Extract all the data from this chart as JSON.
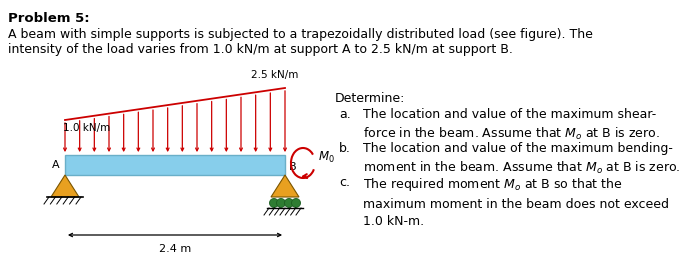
{
  "title": "Problem 5:",
  "description_line1": "A beam with simple supports is subjected to a trapezoidally distributed load (see figure). The",
  "description_line2": "intensity of the load varies from 1.0 kN/m at support A to 2.5 kN/m at support B.",
  "load_left_label": "1.0 kN/m",
  "load_right_label": "2.5 kN/m",
  "length_label": "2.4 m",
  "moment_label": "$M_0$",
  "point_A": "A",
  "point_B": "B",
  "determine_header": "Determine:",
  "item_a_label": "a.",
  "item_a_text": "The location and value of the maximum shear-\nforce in the beam. Assume that $M_o$ at B is zero.",
  "item_b_label": "b.",
  "item_b_text": "The location and value of the maximum bending-\nmoment in the beam. Assume that $M_o$ at B is zero.",
  "item_c_label": "c.",
  "item_c_text": "The required moment $M_o$ at B so that the\nmaximum moment in the beam does not exceed\n1.0 kN-m.",
  "beam_color": "#87CEEB",
  "beam_edge_color": "#6aafc8",
  "load_arrow_color": "#CC0000",
  "support_color": "#E8A020",
  "roller_color": "#2E7D32",
  "background_color": "#FFFFFF",
  "num_arrows": 15
}
